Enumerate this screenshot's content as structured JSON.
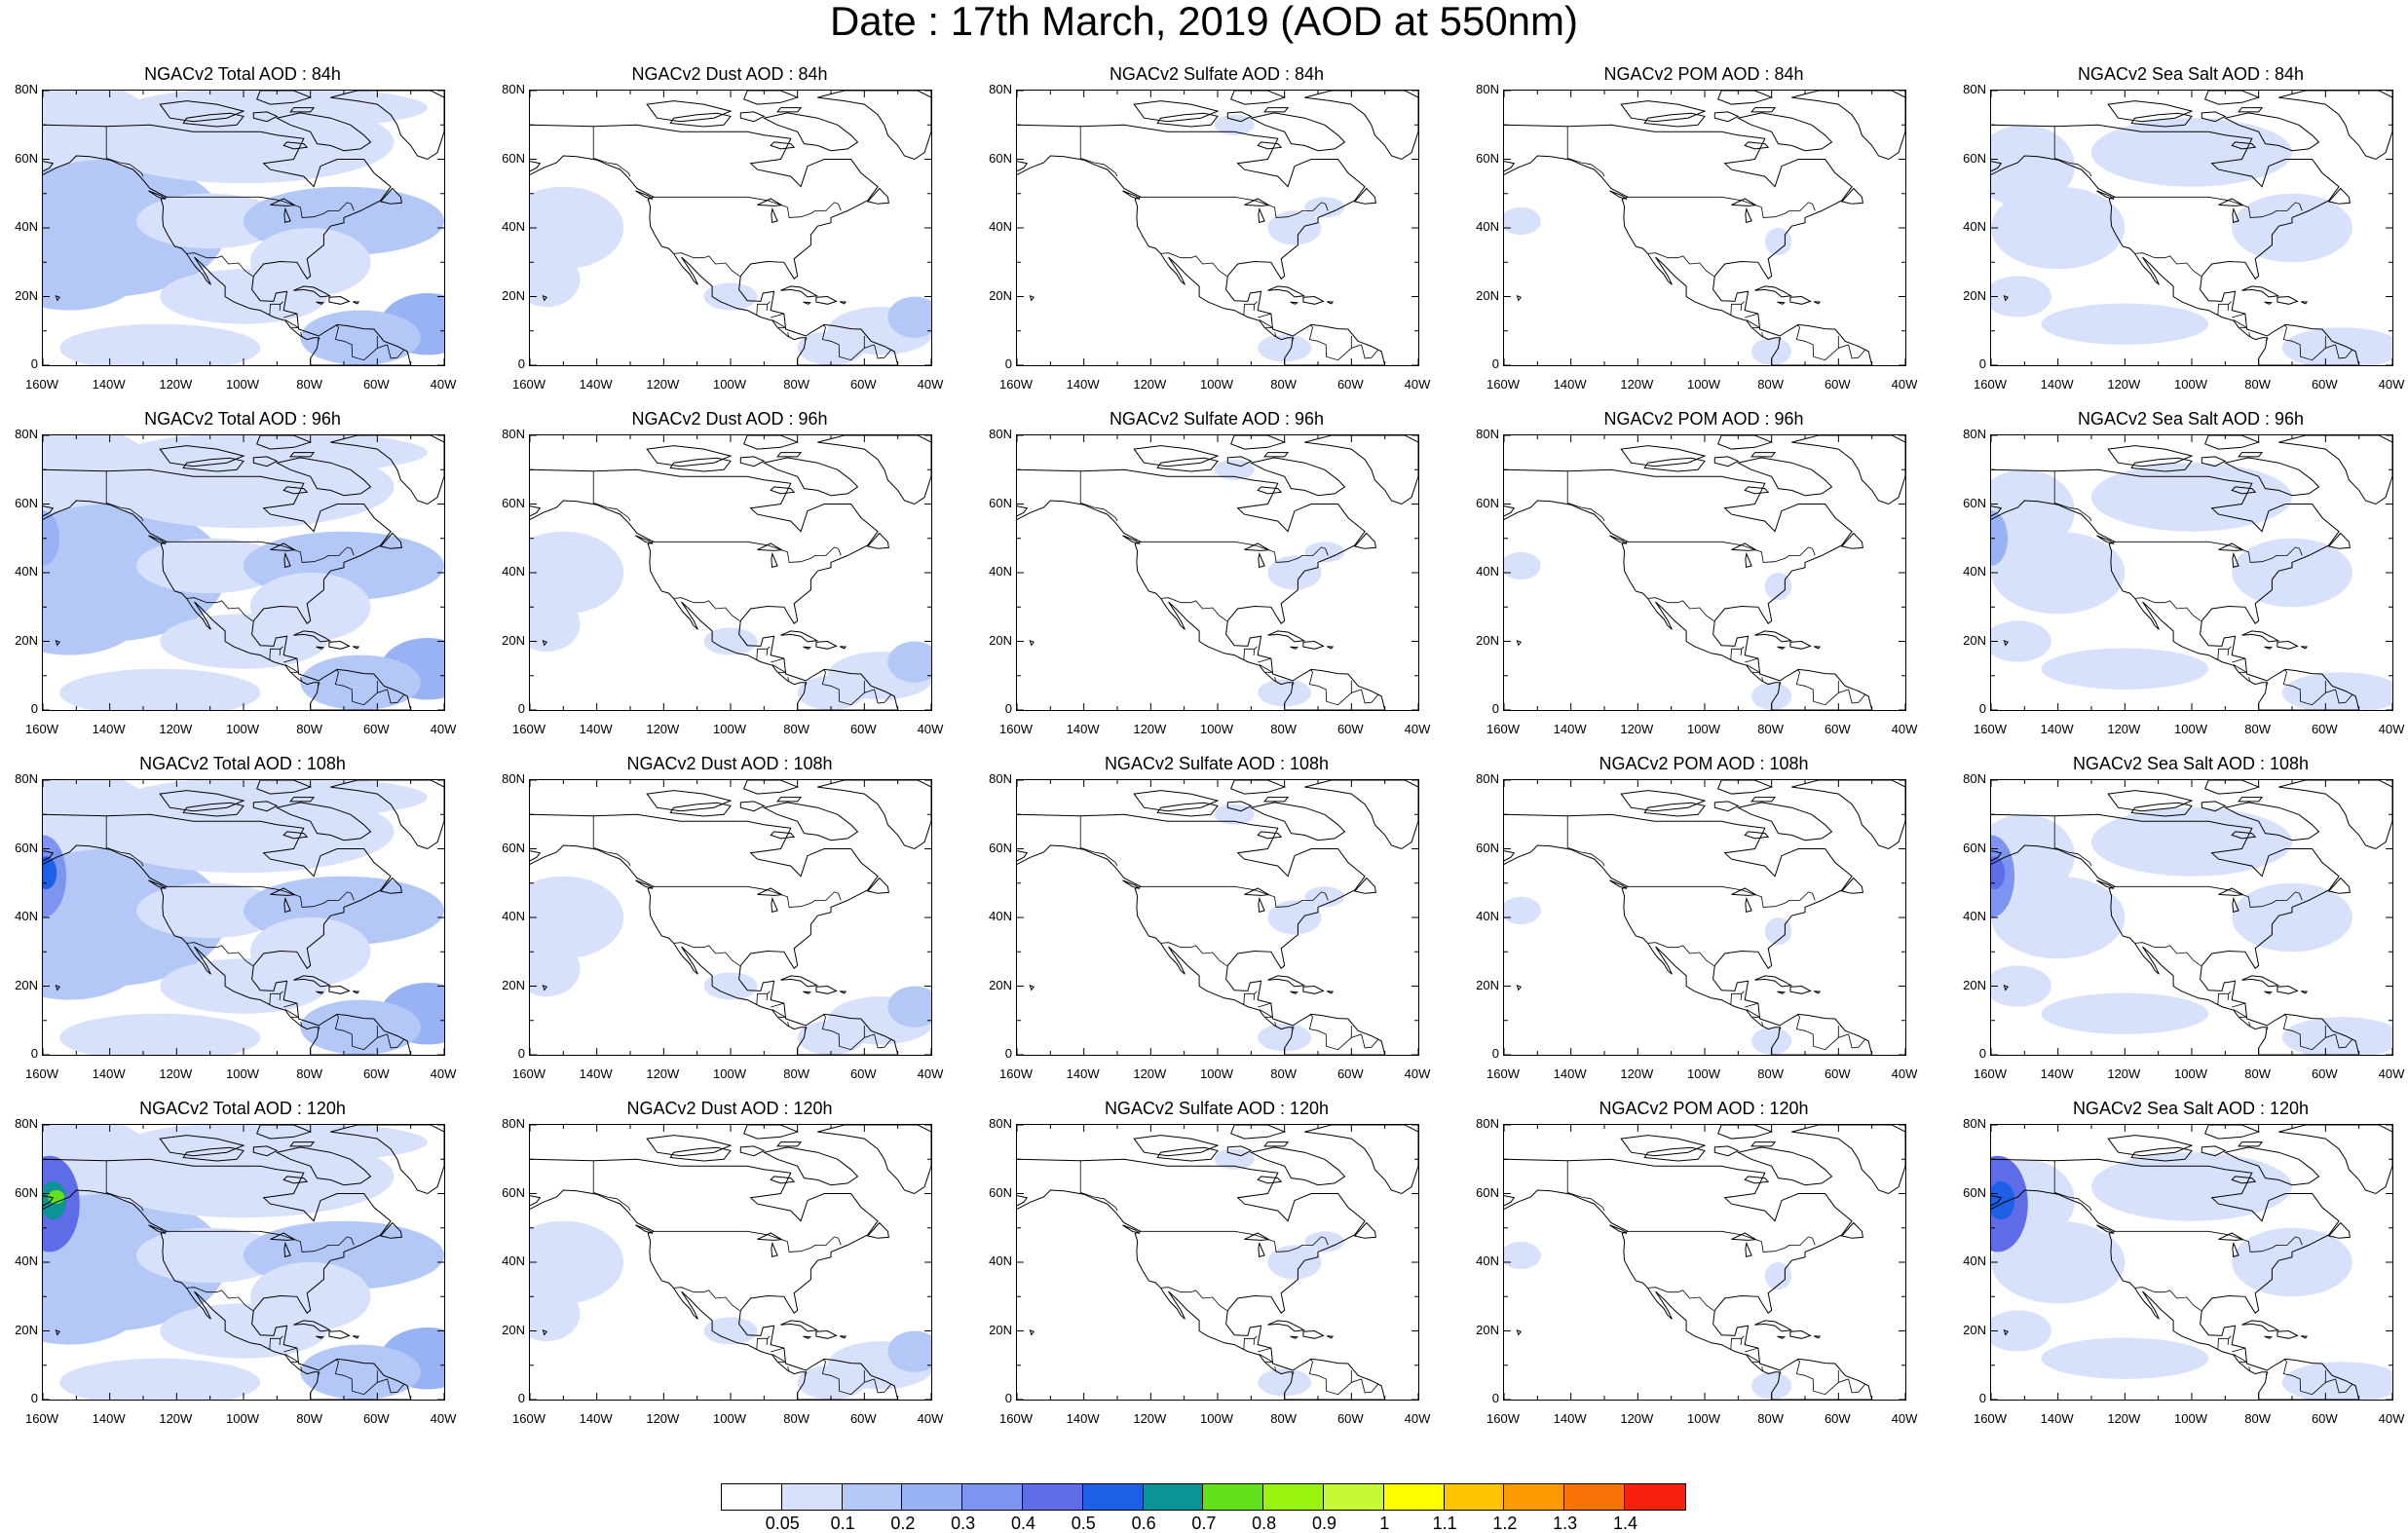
{
  "title": "Date : 17th March, 2019 (AOD at 550nm)",
  "panels": [
    {
      "title": "NGACv2 Total AOD : 84h",
      "kind": "total"
    },
    {
      "title": "NGACv2 Dust AOD : 84h",
      "kind": "dust"
    },
    {
      "title": "NGACv2 Sulfate AOD : 84h",
      "kind": "sulfate"
    },
    {
      "title": "NGACv2 POM AOD : 84h",
      "kind": "pom"
    },
    {
      "title": "NGACv2 Sea Salt AOD : 84h",
      "kind": "seasalt"
    },
    {
      "title": "NGACv2 Total AOD : 96h",
      "kind": "total"
    },
    {
      "title": "NGACv2 Dust AOD : 96h",
      "kind": "dust"
    },
    {
      "title": "NGACv2 Sulfate AOD : 96h",
      "kind": "sulfate"
    },
    {
      "title": "NGACv2 POM AOD : 96h",
      "kind": "pom"
    },
    {
      "title": "NGACv2 Sea Salt AOD : 96h",
      "kind": "seasalt"
    },
    {
      "title": "NGACv2 Total AOD : 108h",
      "kind": "total"
    },
    {
      "title": "NGACv2 Dust AOD : 108h",
      "kind": "dust"
    },
    {
      "title": "NGACv2 Sulfate AOD : 108h",
      "kind": "sulfate"
    },
    {
      "title": "NGACv2 POM AOD : 108h",
      "kind": "pom"
    },
    {
      "title": "NGACv2 Sea Salt AOD : 108h",
      "kind": "seasalt"
    },
    {
      "title": "NGACv2 Total AOD : 120h",
      "kind": "total"
    },
    {
      "title": "NGACv2 Dust AOD : 120h",
      "kind": "dust"
    },
    {
      "title": "NGACv2 Sulfate AOD : 120h",
      "kind": "sulfate"
    },
    {
      "title": "NGACv2 POM AOD : 120h",
      "kind": "pom"
    },
    {
      "title": "NGACv2 Sea Salt  AOD : 120h",
      "kind": "seasalt"
    }
  ],
  "lat_ticks": [
    "80N",
    "60N",
    "40N",
    "20N",
    "0"
  ],
  "lon_ticks": [
    "160W",
    "140W",
    "120W",
    "100W",
    "80W",
    "60W",
    "40W"
  ],
  "colorbar": {
    "colors": [
      "#ffffff",
      "#d7e1fb",
      "#b4c8f7",
      "#98b2f4",
      "#7d94f1",
      "#5f6ce8",
      "#1d5fe6",
      "#0c9395",
      "#63e11b",
      "#98f40f",
      "#c5fa35",
      "#fffc00",
      "#fdc401",
      "#fb9a01",
      "#f97208",
      "#f7220d"
    ],
    "labels": [
      "0.05",
      "0.1",
      "0.2",
      "0.3",
      "0.4",
      "0.5",
      "0.6",
      "0.7",
      "0.8",
      "0.9",
      "1",
      "1.1",
      "1.2",
      "1.3",
      "1.4"
    ]
  }
}
